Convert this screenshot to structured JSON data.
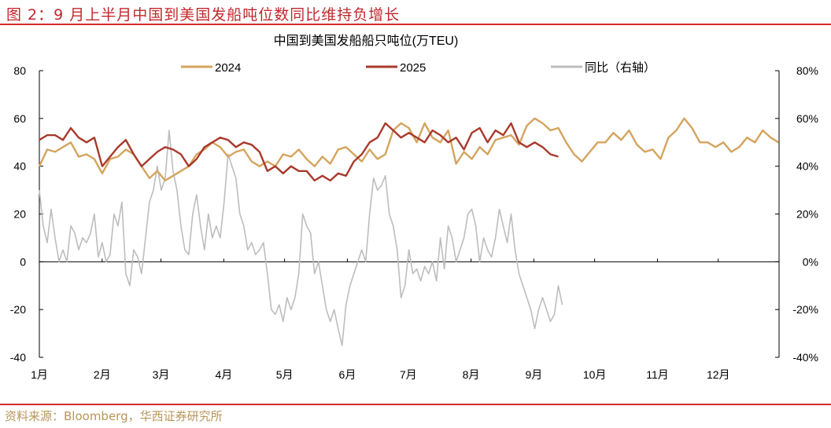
{
  "header": {
    "title": "图 2：9 月上半月中国到美国发船吨位数同比维持负增长"
  },
  "footer": {
    "source": "资料来源：Bloomberg，华西证券研究所"
  },
  "chart_data": {
    "type": "line",
    "title": "中国到美国发船船只吨位(万TEU)",
    "xlabel": "",
    "ylabel": "",
    "y2label": "",
    "ylim": [
      -40,
      80
    ],
    "y2lim": [
      -40,
      80
    ],
    "yticks": [
      "80",
      "60",
      "40",
      "20",
      "0",
      "-20",
      "-40"
    ],
    "y2ticks": [
      "80%",
      "60%",
      "40%",
      "20%",
      "0%",
      "-20%",
      "-40%"
    ],
    "xticks": [
      "1月",
      "2月",
      "3月",
      "4月",
      "5月",
      "6月",
      "7月",
      "8月",
      "9月",
      "10月",
      "11月",
      "12月"
    ],
    "xtick_days": [
      0,
      31,
      60,
      91,
      121,
      152,
      182,
      213,
      244,
      274,
      305,
      335
    ],
    "xlim": [
      0,
      365
    ],
    "legend_position": "top",
    "grid": false,
    "series": [
      {
        "name": "2024",
        "axis": "left",
        "color": "#d4a45e",
        "step_days": 3.88,
        "values": [
          40,
          47,
          46,
          48,
          50,
          44,
          45,
          43,
          37,
          43,
          44,
          47,
          45,
          40,
          35,
          38,
          34,
          36,
          38,
          40,
          45,
          47,
          50,
          48,
          44,
          46,
          47,
          42,
          40,
          42,
          40,
          45,
          44,
          47,
          43,
          40,
          44,
          41,
          47,
          48,
          45,
          42,
          47,
          43,
          45,
          55,
          58,
          56,
          50,
          58,
          52,
          50,
          55,
          41,
          46,
          43,
          48,
          45,
          51,
          52,
          53,
          49,
          57,
          60,
          58,
          55,
          56,
          50,
          45,
          42,
          46,
          50,
          50,
          54,
          51,
          55,
          49,
          46,
          47,
          43,
          52,
          55,
          60,
          56,
          50,
          50,
          48,
          50,
          46,
          48,
          52,
          50,
          55,
          52,
          50
        ]
      },
      {
        "name": "2025",
        "axis": "left",
        "color": "#a83a2c",
        "step_days": 3.88,
        "values": [
          51,
          53,
          53,
          51,
          56,
          52,
          50,
          52,
          40,
          44,
          48,
          51,
          45,
          40,
          43,
          46,
          48,
          47,
          45,
          40,
          43,
          48,
          50,
          52,
          51,
          48,
          50,
          49,
          46,
          38,
          40,
          37,
          40,
          38,
          38,
          34,
          36,
          34,
          37,
          36,
          42,
          45,
          50,
          52,
          58,
          55,
          52,
          54,
          52,
          50,
          55,
          53,
          50,
          52,
          47,
          54,
          56,
          50,
          55,
          53,
          58,
          50,
          48,
          50,
          48,
          45,
          44
        ]
      },
      {
        "name": "同比（右轴）",
        "axis": "right",
        "color": "#bdbdbd",
        "step_days": 1.94,
        "values": [
          30,
          15,
          8,
          22,
          10,
          0,
          5,
          0,
          15,
          12,
          5,
          10,
          8,
          12,
          20,
          2,
          8,
          0,
          3,
          20,
          15,
          25,
          -5,
          -10,
          5,
          2,
          -5,
          10,
          25,
          30,
          40,
          30,
          35,
          55,
          38,
          30,
          15,
          5,
          3,
          20,
          28,
          15,
          5,
          20,
          10,
          15,
          10,
          25,
          45,
          40,
          35,
          20,
          15,
          5,
          8,
          3,
          5,
          8,
          -5,
          -20,
          -22,
          -18,
          -25,
          -15,
          -20,
          -15,
          -5,
          20,
          15,
          12,
          -5,
          0,
          -10,
          -20,
          -25,
          -20,
          -28,
          -35,
          -18,
          -10,
          -5,
          0,
          5,
          0,
          20,
          35,
          30,
          32,
          36,
          20,
          15,
          5,
          -15,
          -10,
          5,
          -5,
          -3,
          -8,
          -2,
          -5,
          0,
          -8,
          10,
          -3,
          15,
          10,
          0,
          5,
          10,
          20,
          22,
          15,
          0,
          10,
          5,
          2,
          10,
          22,
          15,
          8,
          20,
          5,
          -5,
          -10,
          -15,
          -20,
          -28,
          -20,
          -15,
          -20,
          -25,
          -22,
          -10,
          -18
        ]
      }
    ]
  }
}
